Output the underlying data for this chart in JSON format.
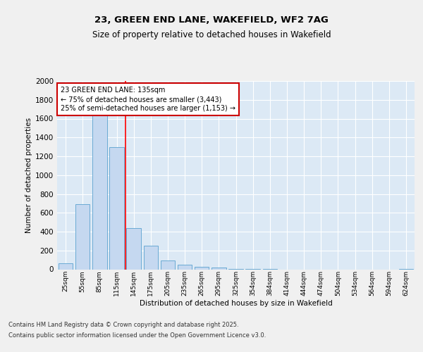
{
  "title1": "23, GREEN END LANE, WAKEFIELD, WF2 7AG",
  "title2": "Size of property relative to detached houses in Wakefield",
  "xlabel": "Distribution of detached houses by size in Wakefield",
  "ylabel": "Number of detached properties",
  "categories": [
    "25sqm",
    "55sqm",
    "85sqm",
    "115sqm",
    "145sqm",
    "175sqm",
    "205sqm",
    "235sqm",
    "265sqm",
    "295sqm",
    "325sqm",
    "354sqm",
    "384sqm",
    "414sqm",
    "444sqm",
    "474sqm",
    "504sqm",
    "534sqm",
    "564sqm",
    "594sqm",
    "624sqm"
  ],
  "values": [
    65,
    690,
    1650,
    1300,
    440,
    250,
    90,
    50,
    28,
    20,
    5,
    2,
    1,
    0,
    0,
    0,
    0,
    0,
    0,
    0,
    2
  ],
  "bar_color": "#c5d8f0",
  "bar_edge_color": "#6aaad4",
  "background_color": "#dce9f5",
  "grid_color": "#ffffff",
  "red_line_index": 3.5,
  "annotation_text": "23 GREEN END LANE: 135sqm\n← 75% of detached houses are smaller (3,443)\n25% of semi-detached houses are larger (1,153) →",
  "annotation_box_color": "#ffffff",
  "annotation_box_edge": "#cc0000",
  "ylim": [
    0,
    2000
  ],
  "yticks": [
    0,
    200,
    400,
    600,
    800,
    1000,
    1200,
    1400,
    1600,
    1800,
    2000
  ],
  "footer1": "Contains HM Land Registry data © Crown copyright and database right 2025.",
  "footer2": "Contains public sector information licensed under the Open Government Licence v3.0."
}
